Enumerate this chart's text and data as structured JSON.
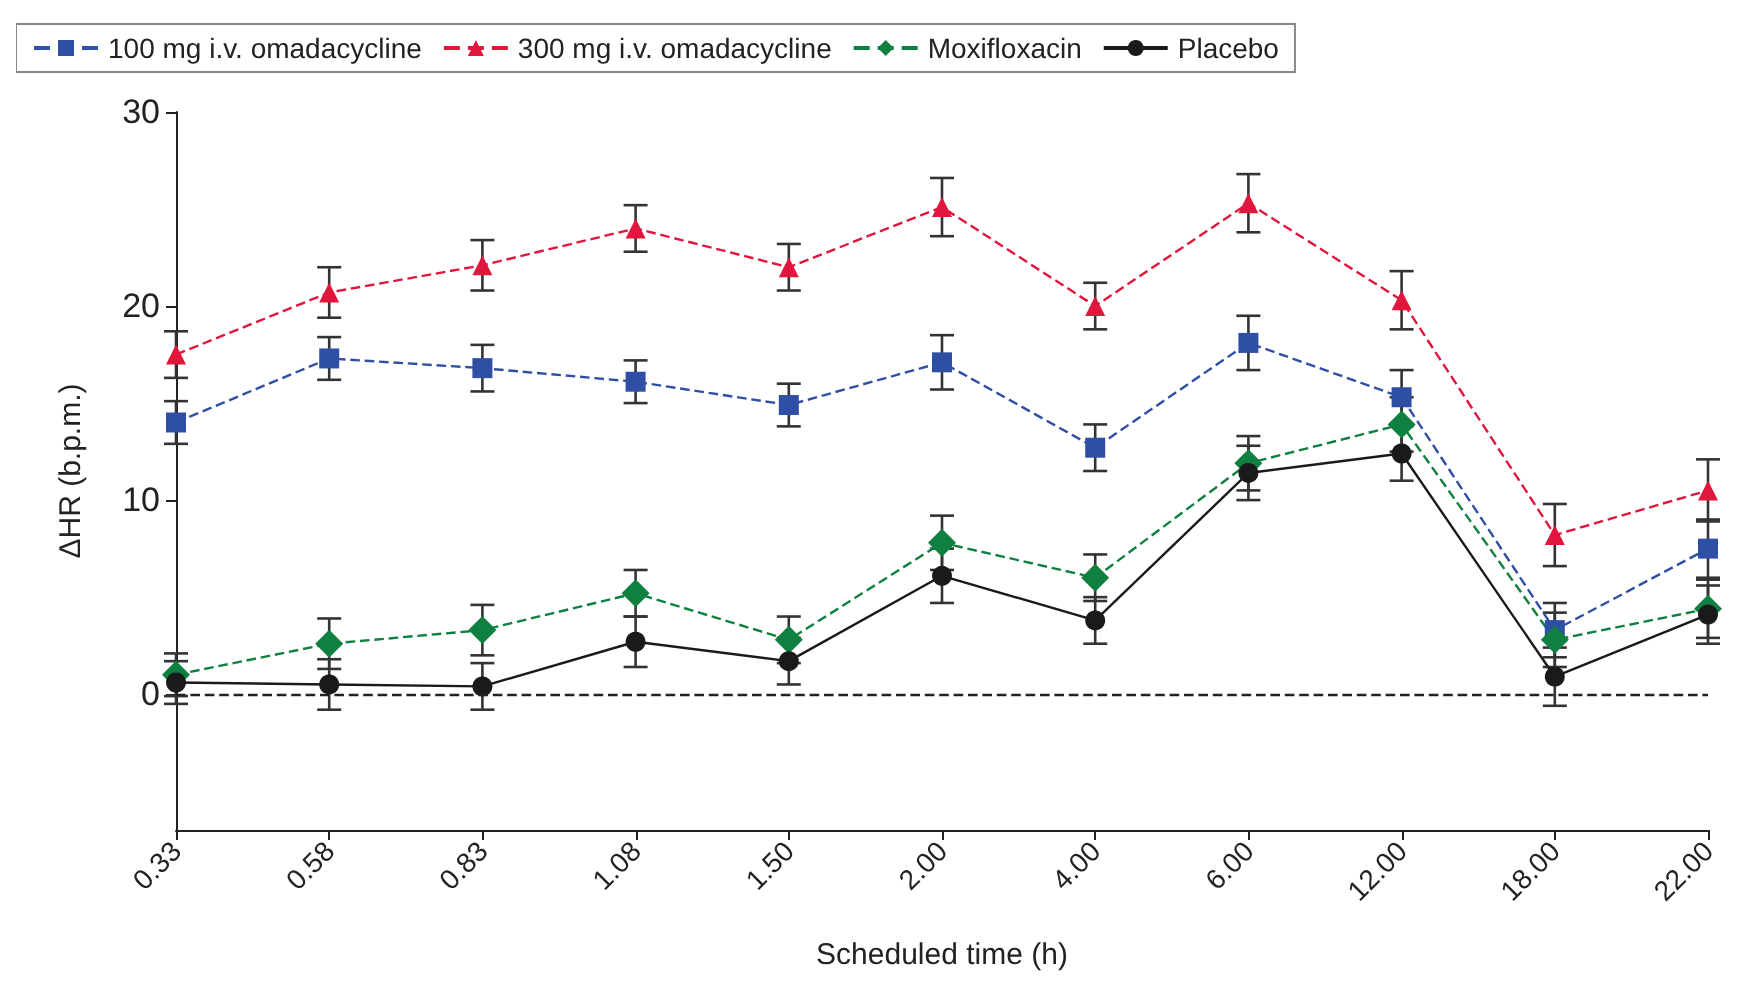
{
  "chart_data": {
    "type": "line",
    "xlabel": "Scheduled time (h)",
    "ylabel": "ΔHR (b.p.m.)",
    "categories": [
      "0.33",
      "0.58",
      "0.83",
      "1.08",
      "1.50",
      "2.00",
      "4.00",
      "6.00",
      "12.00",
      "18.00",
      "22.00"
    ],
    "series": [
      {
        "name": "100 mg i.v. omadacycline",
        "color": "#2e4fa3",
        "marker": "square",
        "line_style": "dashed",
        "values": [
          14.0,
          17.3,
          16.8,
          16.1,
          14.9,
          17.1,
          12.7,
          18.1,
          15.3,
          3.3,
          7.5
        ],
        "errors": [
          1.1,
          1.1,
          1.2,
          1.1,
          1.1,
          1.4,
          1.2,
          1.4,
          1.4,
          1.4,
          1.5
        ]
      },
      {
        "name": "300 mg i.v. omadacycline",
        "color": "#e0163c",
        "marker": "triangle",
        "line_style": "dashed",
        "values": [
          17.5,
          20.7,
          22.1,
          24.0,
          22.0,
          25.1,
          20.0,
          25.3,
          20.3,
          8.2,
          10.5
        ],
        "errors": [
          1.2,
          1.3,
          1.3,
          1.2,
          1.2,
          1.5,
          1.2,
          1.5,
          1.5,
          1.6,
          1.6
        ]
      },
      {
        "name": "Moxifloxacin",
        "color": "#0f8040",
        "marker": "diamond",
        "line_style": "dashed",
        "values": [
          1.0,
          2.6,
          3.3,
          5.2,
          2.8,
          7.8,
          6.0,
          11.9,
          13.9,
          2.8,
          4.4
        ],
        "errors": [
          1.1,
          1.3,
          1.3,
          1.2,
          1.2,
          1.4,
          1.2,
          1.4,
          1.4,
          1.4,
          1.5
        ]
      },
      {
        "name": "Placebo",
        "color": "#1a1a1a",
        "marker": "circle",
        "line_style": "solid",
        "values": [
          0.6,
          0.5,
          0.4,
          2.7,
          1.7,
          6.1,
          3.8,
          11.4,
          12.4,
          0.9,
          4.1
        ],
        "errors": [
          1.1,
          1.3,
          1.2,
          1.3,
          1.2,
          1.4,
          1.2,
          1.4,
          1.4,
          1.5,
          1.5
        ]
      }
    ],
    "ylim": [
      -7,
      30
    ],
    "yticks": [
      0,
      10,
      20,
      30
    ],
    "grid": false,
    "legend": "top",
    "ref_lines": [
      {
        "axis": "y",
        "value": 0,
        "color": "#222222",
        "line_style": "dashed"
      }
    ]
  }
}
